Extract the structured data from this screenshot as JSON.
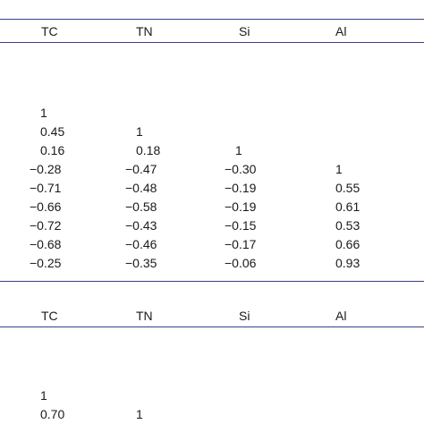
{
  "table1": {
    "headers": [
      "TC",
      "TN",
      "Si",
      "Al"
    ],
    "rows": [
      [
        "1",
        "",
        "",
        ""
      ],
      [
        "0.45",
        "1",
        "",
        ""
      ],
      [
        "0.16",
        "0.18",
        "1",
        ""
      ],
      [
        "−0.28",
        "−0.47",
        "−0.30",
        "1"
      ],
      [
        "−0.71",
        "−0.48",
        "−0.19",
        "0.55"
      ],
      [
        "−0.66",
        "−0.58",
        "−0.19",
        "0.61"
      ],
      [
        "−0.72",
        "−0.43",
        "−0.15",
        "0.53"
      ],
      [
        "−0.68",
        "−0.46",
        "−0.17",
        "0.66"
      ],
      [
        "−0.25",
        "−0.35",
        "−0.06",
        "0.93"
      ]
    ]
  },
  "table2": {
    "headers": [
      "TC",
      "TN",
      "Si",
      "Al"
    ],
    "rows": [
      [
        "1",
        "",
        "",
        ""
      ],
      [
        "0.70",
        "1",
        "",
        ""
      ]
    ]
  },
  "colors": {
    "rule": "#3a3d8c",
    "text": "#1a1a1a"
  }
}
